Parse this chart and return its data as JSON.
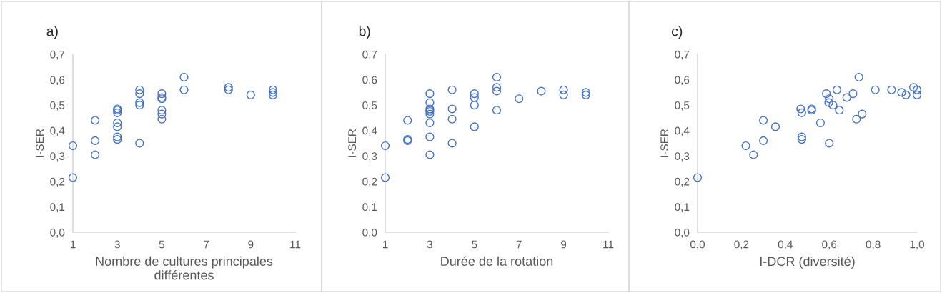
{
  "chart_data": [
    {
      "type": "scatter",
      "title": "a)",
      "xlabel": "Nombre de cultures principales\ndifférentes",
      "ylabel": "I-SER",
      "marker": "circle",
      "grid": false,
      "legend": false,
      "xlim": [
        1,
        11
      ],
      "xticks": [
        1,
        3,
        5,
        7,
        9,
        11
      ],
      "ylim": [
        0,
        0.7
      ],
      "yticks": [
        {
          "value": 0,
          "label": "0,0"
        },
        {
          "value": 0.1,
          "label": "0,1"
        },
        {
          "value": 0.2,
          "label": "0,2"
        },
        {
          "value": 0.3,
          "label": "0,3"
        },
        {
          "value": 0.4,
          "label": "0,4"
        },
        {
          "value": 0.5,
          "label": "0,5"
        },
        {
          "value": 0.6,
          "label": "0,6"
        },
        {
          "value": 0.7,
          "label": "0,7"
        }
      ],
      "series": [
        {
          "color": "#4472c4",
          "x": [
            1,
            1,
            2,
            2,
            2,
            3,
            3,
            3,
            3,
            3,
            3,
            3,
            4,
            4,
            4,
            4,
            4,
            5,
            5,
            5,
            5,
            5,
            5,
            6,
            6,
            8,
            8,
            9,
            10,
            10,
            10
          ],
          "values": [
            0.34,
            0.215,
            0.44,
            0.36,
            0.305,
            0.485,
            0.48,
            0.47,
            0.43,
            0.415,
            0.375,
            0.365,
            0.56,
            0.545,
            0.51,
            0.5,
            0.35,
            0.545,
            0.53,
            0.525,
            0.48,
            0.465,
            0.445,
            0.61,
            0.56,
            0.57,
            0.56,
            0.54,
            0.56,
            0.55,
            0.54
          ]
        }
      ]
    },
    {
      "type": "scatter",
      "title": "b)",
      "xlabel": "Durée de la rotation",
      "ylabel": "I-SER",
      "marker": "circle",
      "grid": false,
      "legend": false,
      "xlim": [
        1,
        11
      ],
      "xticks": [
        1,
        3,
        5,
        7,
        9,
        11
      ],
      "ylim": [
        0,
        0.7
      ],
      "yticks": [
        {
          "value": 0,
          "label": "0,0"
        },
        {
          "value": 0.1,
          "label": "0,1"
        },
        {
          "value": 0.2,
          "label": "0,2"
        },
        {
          "value": 0.3,
          "label": "0,3"
        },
        {
          "value": 0.4,
          "label": "0,4"
        },
        {
          "value": 0.5,
          "label": "0,5"
        },
        {
          "value": 0.6,
          "label": "0,6"
        },
        {
          "value": 0.7,
          "label": "0,7"
        }
      ],
      "series": [
        {
          "color": "#4472c4",
          "x": [
            1,
            1,
            2,
            2,
            2,
            3,
            3,
            3,
            3,
            3,
            3,
            3,
            3,
            3,
            4,
            4,
            4,
            4,
            5,
            5,
            5,
            5,
            6,
            6,
            6,
            6,
            7,
            8,
            9,
            9,
            10,
            10
          ],
          "values": [
            0.34,
            0.215,
            0.44,
            0.365,
            0.36,
            0.545,
            0.51,
            0.485,
            0.48,
            0.475,
            0.465,
            0.43,
            0.375,
            0.305,
            0.56,
            0.485,
            0.445,
            0.35,
            0.545,
            0.53,
            0.5,
            0.415,
            0.61,
            0.57,
            0.555,
            0.48,
            0.525,
            0.555,
            0.56,
            0.54,
            0.55,
            0.54
          ]
        }
      ]
    },
    {
      "type": "scatter",
      "title": "c)",
      "xlabel": "I-DCR (diversité)",
      "ylabel": "I-SER",
      "marker": "circle",
      "grid": false,
      "legend": false,
      "xlim": [
        0,
        1
      ],
      "xticks": [
        {
          "value": 0,
          "label": "0,0"
        },
        {
          "value": 0.2,
          "label": "0,2"
        },
        {
          "value": 0.4,
          "label": "0,4"
        },
        {
          "value": 0.6,
          "label": "0,6"
        },
        {
          "value": 0.8,
          "label": "0,8"
        },
        {
          "value": 1,
          "label": "1,0"
        }
      ],
      "ylim": [
        0,
        0.7
      ],
      "yticks": [
        {
          "value": 0,
          "label": "0,0"
        },
        {
          "value": 0.1,
          "label": "0,1"
        },
        {
          "value": 0.2,
          "label": "0,2"
        },
        {
          "value": 0.3,
          "label": "0,3"
        },
        {
          "value": 0.4,
          "label": "0,4"
        },
        {
          "value": 0.5,
          "label": "0,5"
        },
        {
          "value": 0.6,
          "label": "0,6"
        },
        {
          "value": 0.7,
          "label": "0,7"
        }
      ],
      "series": [
        {
          "color": "#4472c4",
          "x": [
            0.0,
            0.22,
            0.255,
            0.3,
            0.3,
            0.355,
            0.47,
            0.475,
            0.475,
            0.475,
            0.52,
            0.52,
            0.56,
            0.587,
            0.6,
            0.598,
            0.6,
            0.617,
            0.635,
            0.646,
            0.68,
            0.708,
            0.735,
            0.724,
            0.75,
            0.81,
            0.884,
            0.93,
            0.95,
            0.984,
            1.0,
            1.0
          ],
          "values": [
            0.215,
            0.34,
            0.305,
            0.44,
            0.36,
            0.415,
            0.485,
            0.47,
            0.375,
            0.365,
            0.485,
            0.48,
            0.43,
            0.545,
            0.525,
            0.51,
            0.35,
            0.5,
            0.56,
            0.48,
            0.53,
            0.545,
            0.61,
            0.445,
            0.465,
            0.56,
            0.56,
            0.55,
            0.54,
            0.57,
            0.56,
            0.54
          ]
        }
      ]
    }
  ]
}
